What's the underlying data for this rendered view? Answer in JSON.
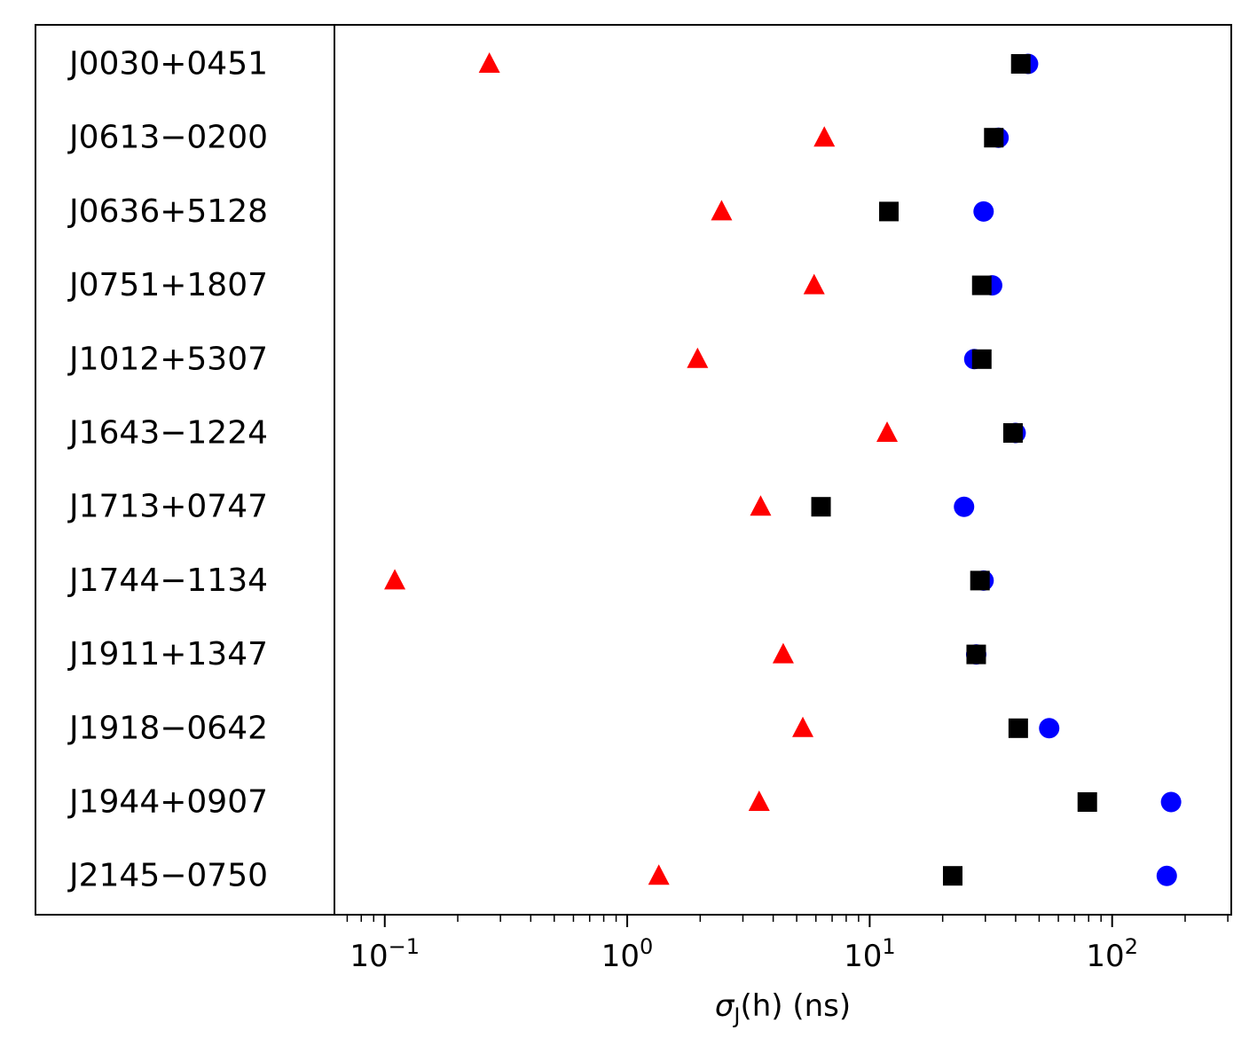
{
  "chart_data": {
    "type": "scatter",
    "x_scale": "log",
    "xlim": [
      0.062,
      310
    ],
    "xlabel": {
      "main": "σ",
      "sub": "J",
      "rest": "(h) (ns)"
    },
    "x_ticks": [
      {
        "value": 0.1,
        "base": "10",
        "exp": "−1"
      },
      {
        "value": 1,
        "base": "10",
        "exp": "0"
      },
      {
        "value": 10,
        "base": "10",
        "exp": "1"
      },
      {
        "value": 100,
        "base": "10",
        "exp": "2"
      }
    ],
    "grid": false,
    "categories": [
      "J0030+0451",
      "J0613−0200",
      "J0636+5128",
      "J0751+1807",
      "J1012+5307",
      "J1643−1224",
      "J1713+0747",
      "J1744−1134",
      "J1911+1347",
      "J1918−0642",
      "J1944+0907",
      "J2145−0750"
    ],
    "series": [
      {
        "marker": "circle",
        "color": "#0000ff",
        "values": [
          45,
          34,
          29.5,
          32,
          27,
          40,
          24.5,
          29.5,
          27.5,
          55,
          175,
          168
        ]
      },
      {
        "marker": "square",
        "color": "#000000",
        "values": [
          42,
          32.5,
          12,
          29,
          29,
          39,
          6.3,
          28.5,
          27.5,
          41,
          79,
          22
        ]
      },
      {
        "marker": "triangle",
        "color": "#ff0000",
        "values": [
          0.27,
          6.5,
          2.45,
          5.9,
          1.95,
          11.8,
          3.55,
          0.11,
          4.4,
          5.3,
          3.5,
          1.35
        ]
      }
    ]
  }
}
